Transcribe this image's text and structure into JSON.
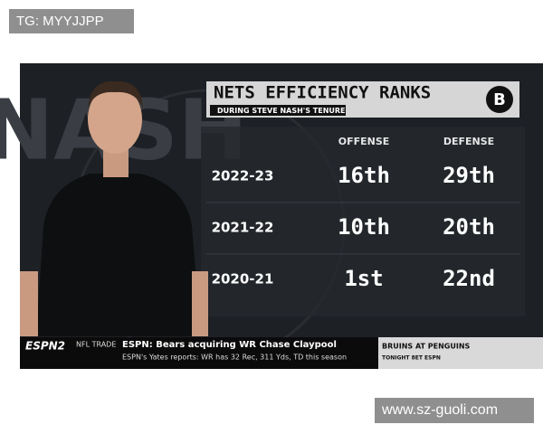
{
  "watermark_top": "TG: MYYJJPP",
  "watermark_bottom": "www.sz-guoli.com",
  "graphic": {
    "background_text": "NASH",
    "title": "NETS EFFICIENCY RANKS",
    "subtitle": "DURING STEVE NASH'S TENURE",
    "logo": "B",
    "columns": [
      "OFFENSE",
      "DEFENSE"
    ],
    "rows": [
      [
        "2022-23",
        "16th",
        "29th"
      ],
      [
        "2021-22",
        "10th",
        "20th"
      ],
      [
        "2020-21",
        "1st",
        "22nd"
      ]
    ]
  },
  "ticker": {
    "network": "ESPN2",
    "label": "NFL TRADE",
    "headline": "ESPN: Bears acquiring WR Chase Claypool",
    "subline": "ESPN's Yates reports: WR has 32 Rec, 311 Yds, TD this season",
    "promo_title": "BRUINS AT PENGUINS",
    "promo_time": "TONIGHT 8ET ESPN"
  }
}
